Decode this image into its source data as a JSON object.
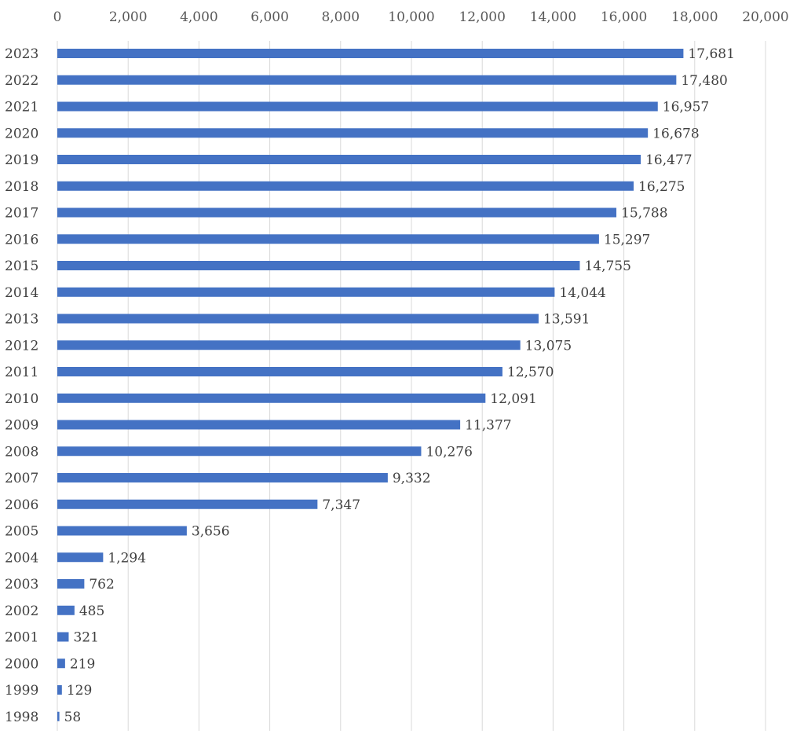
{
  "colors": {
    "bar": "#4472c4",
    "grid": "#d9d9d9",
    "text": "#404040"
  },
  "chart_data": {
    "type": "bar",
    "orientation": "horizontal",
    "title": "",
    "xlabel": "",
    "ylabel": "",
    "xlim": [
      0,
      20000
    ],
    "x_ticks": [
      0,
      2000,
      4000,
      6000,
      8000,
      10000,
      12000,
      14000,
      16000,
      18000,
      20000
    ],
    "x_tick_labels": [
      "0",
      "2,000",
      "4,000",
      "6,000",
      "8,000",
      "10,000",
      "12,000",
      "14,000",
      "16,000",
      "18,000",
      "20,000"
    ],
    "x_axis_position": "top",
    "grid": true,
    "categories": [
      "2023",
      "2022",
      "2021",
      "2020",
      "2019",
      "2018",
      "2017",
      "2016",
      "2015",
      "2014",
      "2013",
      "2012",
      "2011",
      "2010",
      "2009",
      "2008",
      "2007",
      "2006",
      "2005",
      "2004",
      "2003",
      "2002",
      "2001",
      "2000",
      "1999",
      "1998"
    ],
    "values": [
      17681,
      17480,
      16957,
      16678,
      16477,
      16275,
      15788,
      15297,
      14755,
      14044,
      13591,
      13075,
      12570,
      12091,
      11377,
      10276,
      9332,
      7347,
      3656,
      1294,
      762,
      485,
      321,
      219,
      129,
      58
    ],
    "value_labels": [
      "17,681",
      "17,480",
      "16,957",
      "16,678",
      "16,477",
      "16,275",
      "15,788",
      "15,297",
      "14,755",
      "14,044",
      "13,591",
      "13,075",
      "12,570",
      "12,091",
      "11,377",
      "10,276",
      "9,332",
      "7,347",
      "3,656",
      "1,294",
      "762",
      "485",
      "321",
      "219",
      "129",
      "58"
    ]
  }
}
